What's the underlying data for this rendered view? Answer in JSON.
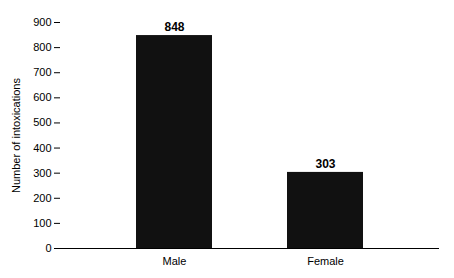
{
  "chart_data": {
    "type": "bar",
    "categories": [
      "Male",
      "Female"
    ],
    "values": [
      848,
      303
    ],
    "color": "#111111",
    "ylabel": "Number of intoxications",
    "ylim": [
      0,
      900
    ],
    "yticks": [
      0,
      100,
      200,
      300,
      400,
      500,
      600,
      700,
      800,
      900
    ],
    "grid": false,
    "data_labels": true
  }
}
